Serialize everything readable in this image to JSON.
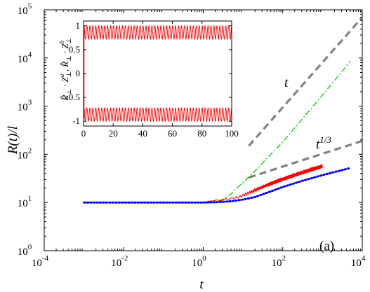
{
  "chart_data": [
    {
      "type": "line",
      "panel_label": "(a)",
      "xlabel": "t",
      "ylabel": "R(t)/l",
      "xscale": "log",
      "yscale": "log",
      "xlim": [
        0.0001,
        10000
      ],
      "ylim": [
        1,
        100000
      ],
      "x_ticks": [
        0.0001,
        0.01,
        1,
        100,
        10000
      ],
      "x_tick_labels": [
        {
          "base": "10",
          "exp": "-4"
        },
        {
          "base": "10",
          "exp": "-2"
        },
        {
          "base": "10",
          "exp": "0"
        },
        {
          "base": "10",
          "exp": "2"
        },
        {
          "base": "10",
          "exp": "4"
        }
      ],
      "y_ticks": [
        1,
        10,
        100,
        1000,
        10000,
        100000
      ],
      "y_tick_labels": [
        {
          "base": "10",
          "exp": "0"
        },
        {
          "base": "10",
          "exp": "1"
        },
        {
          "base": "10",
          "exp": "2"
        },
        {
          "base": "10",
          "exp": "3"
        },
        {
          "base": "10",
          "exp": "4"
        },
        {
          "base": "10",
          "exp": "5"
        }
      ],
      "grid": false,
      "series": [
        {
          "style": "dashed",
          "color": "#808080",
          "x": [
            14,
            10000
          ],
          "y": [
            150,
            70000
          ]
        },
        {
          "style": "dashed",
          "color": "#808080",
          "x": [
            14,
            10000
          ],
          "y": [
            33,
            190
          ]
        },
        {
          "style": "dash-dot",
          "color": "#00cc00",
          "x": [
            0.001,
            1,
            2,
            3,
            5,
            8,
            12,
            20,
            50,
            100,
            1000,
            5000
          ],
          "y": [
            10,
            10,
            10.3,
            11.5,
            15,
            22,
            30,
            45,
            100,
            180,
            1700,
            8500
          ]
        },
        {
          "style": "solid-oscillating",
          "color": "#ff0000",
          "x": [
            0.001,
            1,
            1.3,
            2,
            3,
            5,
            8,
            12,
            20,
            50,
            100,
            300,
            1000
          ],
          "y": [
            10,
            10,
            10.5,
            11,
            11.3,
            12,
            13,
            15,
            18,
            25,
            31,
            43,
            58
          ],
          "oscillation_start": 2,
          "oscillation_amplitude_y": [
            11,
            52
          ]
        },
        {
          "style": "dotted",
          "color": "#0000ff",
          "x": [
            0.001,
            1,
            2,
            5,
            10,
            20,
            50,
            100,
            300,
            1000,
            5000
          ],
          "y": [
            10,
            10,
            10.1,
            10.6,
            11.5,
            13,
            17,
            21,
            28,
            37,
            52
          ]
        }
      ],
      "annotations": [
        {
          "text": "t",
          "anchor_x": 1000,
          "anchor_y": 1000
        },
        {
          "text": "t",
          "sup": "1/3",
          "anchor_x": 1000,
          "anchor_y": 150
        }
      ]
    },
    {
      "type": "line",
      "role": "inset",
      "xlabel": "",
      "ylabel_parts": [
        "R̂",
        "⊥",
        " · Z",
        "a",
        "⊥",
        ",  R̂",
        "⊥",
        " · Z",
        "b",
        "⊥"
      ],
      "xlim": [
        0,
        100
      ],
      "ylim": [
        -1.1,
        1.1
      ],
      "x_ticks": [
        0,
        20,
        40,
        60,
        80,
        100
      ],
      "x_tick_labels": [
        "0",
        "20",
        "40",
        "60",
        "80",
        "100"
      ],
      "y_ticks": [
        -1,
        -0.5,
        0,
        0.5,
        1
      ],
      "y_tick_labels": [
        "-1",
        "-0.5",
        "0",
        "0.5",
        "1"
      ],
      "grid": false,
      "series": [
        {
          "style": "solid",
          "color": "#ff0000",
          "description_values": {
            "upper_band": [
              0.72,
              1.0
            ],
            "lower_band": [
              -1.0,
              -0.72
            ],
            "periods": 50,
            "x_start": 0.3,
            "x_end": 100
          }
        }
      ]
    }
  ]
}
